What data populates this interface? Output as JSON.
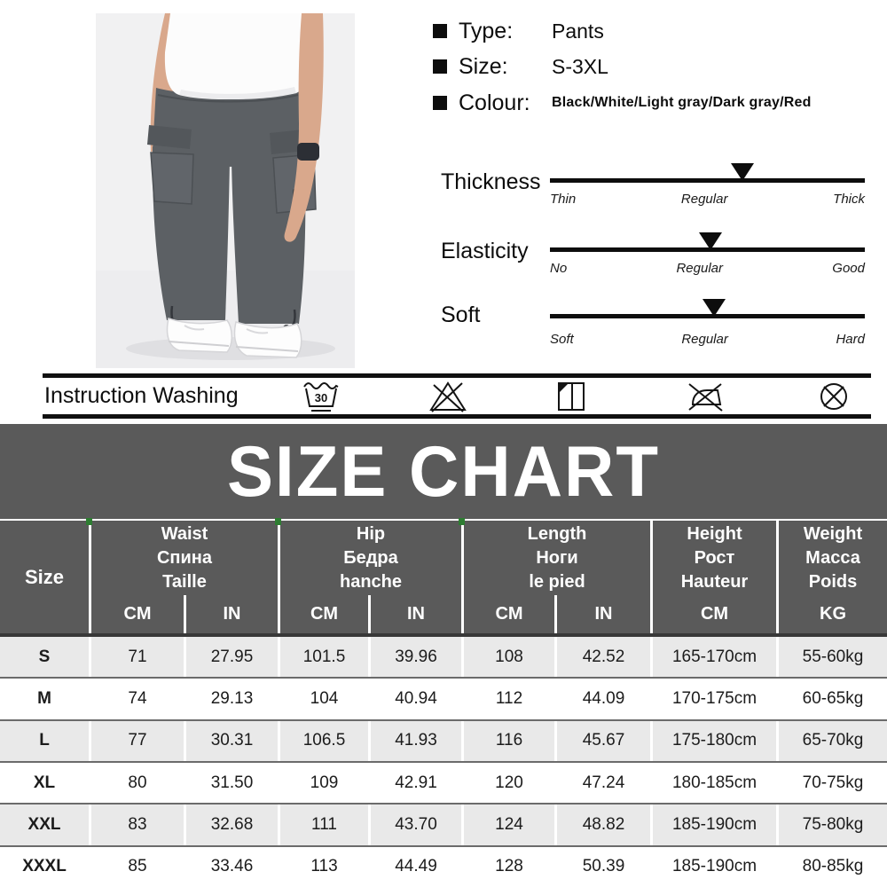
{
  "specs": {
    "items": [
      {
        "label": "Type:",
        "value": "Pants"
      },
      {
        "label": "Size:",
        "value": "S-3XL"
      },
      {
        "label": "Colour:",
        "value": "Black/White/Light gray/Dark gray/Red"
      }
    ]
  },
  "sliders": [
    {
      "name": "Thickness",
      "scale": [
        "Thin",
        "Regular",
        "Thick"
      ],
      "marker_pct": 61
    },
    {
      "name": "Elasticity",
      "scale": [
        "No",
        "Regular",
        "Good"
      ],
      "marker_pct": 51
    },
    {
      "name": "Soft",
      "scale": [
        "Soft",
        "Regular",
        "Hard"
      ],
      "marker_pct": 52
    }
  ],
  "washing": {
    "label": "Instruction Washing",
    "temperature": "30",
    "icons": [
      "wash-30c",
      "do-not-bleach",
      "drip-dry-in-shade",
      "do-not-iron",
      "do-not-dry-clean"
    ]
  },
  "size_chart": {
    "title": "SIZE CHART",
    "size_header": "Size",
    "groups": [
      {
        "en": "Waist",
        "ru": "Спина",
        "fr": "Taille"
      },
      {
        "en": "Hip",
        "ru": "Бедра",
        "fr": "hanche"
      },
      {
        "en": "Length",
        "ru": "Ноги",
        "fr": "le pied"
      },
      {
        "en": "Height",
        "ru": "Рост",
        "fr": "Hauteur"
      },
      {
        "en": "Weight",
        "ru": "Масса",
        "fr": "Poids"
      }
    ],
    "unit_row": [
      "CM",
      "IN",
      "CM",
      "IN",
      "CM",
      "IN",
      "CM",
      "KG"
    ],
    "rows": [
      [
        "S",
        "71",
        "27.95",
        "101.5",
        "39.96",
        "108",
        "42.52",
        "165-170cm",
        "55-60kg"
      ],
      [
        "M",
        "74",
        "29.13",
        "104",
        "40.94",
        "112",
        "44.09",
        "170-175cm",
        "60-65kg"
      ],
      [
        "L",
        "77",
        "30.31",
        "106.5",
        "41.93",
        "116",
        "45.67",
        "175-180cm",
        "65-70kg"
      ],
      [
        "XL",
        "80",
        "31.50",
        "109",
        "42.91",
        "120",
        "47.24",
        "180-185cm",
        "70-75kg"
      ],
      [
        "XXL",
        "83",
        "32.68",
        "111",
        "43.70",
        "124",
        "48.82",
        "185-190cm",
        "75-80kg"
      ],
      [
        "XXXL",
        "85",
        "33.46",
        "113",
        "44.49",
        "128",
        "50.39",
        "185-190cm",
        "80-85kg"
      ]
    ]
  },
  "colors": {
    "banner_bg": "#5a5a5a",
    "row_alt_bg": "#e9e9e9",
    "divider_green": "#2e7d32",
    "line_black": "#111111",
    "pants_gray": "#5c6064"
  }
}
